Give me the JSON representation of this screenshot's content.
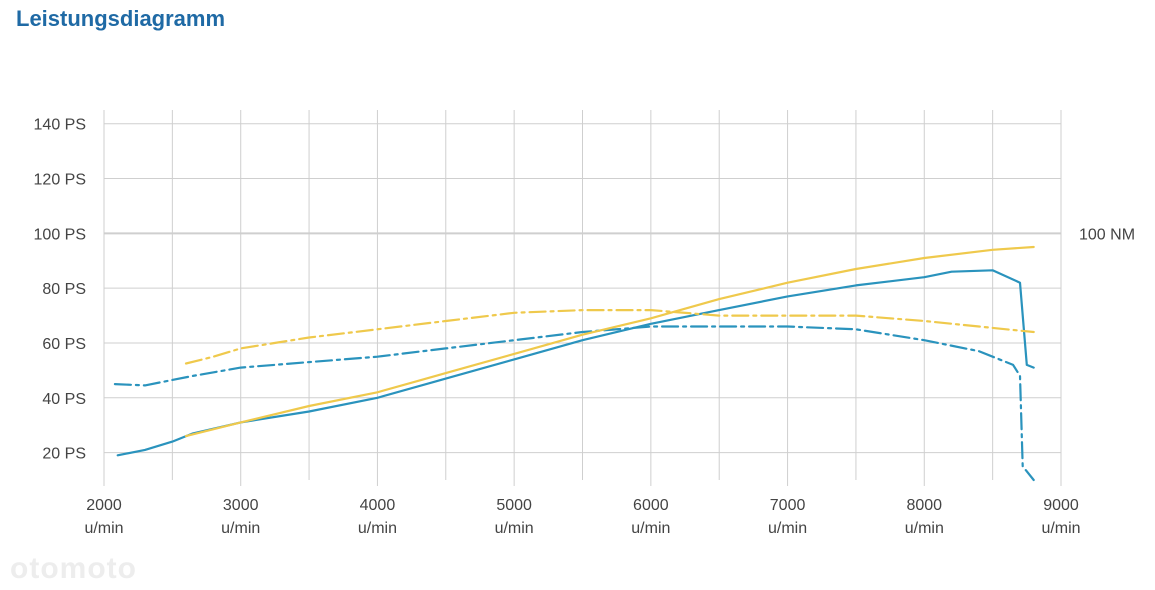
{
  "page": {
    "title": "Leistungsdiagramm",
    "watermark": "otomoto"
  },
  "colors": {
    "title": "#1f6aa5",
    "power": "#2a93bd",
    "torque": "#efc94c",
    "grid": "#cfcfcf",
    "text": "#444444"
  },
  "chart_data": {
    "type": "line",
    "title": "Leistungsdiagramm",
    "xlim": [
      2000,
      9000
    ],
    "ylim": [
      10,
      145
    ],
    "x_ticks": [
      {
        "value": 2000,
        "label": "2000",
        "unit": "u/min"
      },
      {
        "value": 3000,
        "label": "3000",
        "unit": "u/min"
      },
      {
        "value": 4000,
        "label": "4000",
        "unit": "u/min"
      },
      {
        "value": 5000,
        "label": "5000",
        "unit": "u/min"
      },
      {
        "value": 6000,
        "label": "6000",
        "unit": "u/min"
      },
      {
        "value": 7000,
        "label": "7000",
        "unit": "u/min"
      },
      {
        "value": 8000,
        "label": "8000",
        "unit": "u/min"
      },
      {
        "value": 9000,
        "label": "9000",
        "unit": "u/min"
      }
    ],
    "x_minor_gridlines": [
      2500,
      3500,
      4500,
      5500,
      6500,
      7500,
      8500
    ],
    "y_ticks": [
      {
        "value": 20,
        "label": "20 PS"
      },
      {
        "value": 40,
        "label": "40 PS"
      },
      {
        "value": 60,
        "label": "60 PS"
      },
      {
        "value": 80,
        "label": "80 PS"
      },
      {
        "value": 100,
        "label": "100 PS"
      },
      {
        "value": 120,
        "label": "120 PS"
      },
      {
        "value": 140,
        "label": "140 PS"
      }
    ],
    "right_axis_label": {
      "value": 100,
      "label": "100 NM"
    },
    "grid": true,
    "series": [
      {
        "color": "#2a93bd",
        "style": "solid",
        "x": [
          2100,
          2300,
          2500,
          2650,
          3000,
          3500,
          4000,
          4500,
          5000,
          5500,
          6000,
          6500,
          7000,
          7500,
          8000,
          8200,
          8500,
          8700,
          8750,
          8800
        ],
        "y": [
          19,
          21,
          24,
          27,
          31,
          35,
          40,
          47,
          54,
          61,
          67,
          72,
          77,
          81,
          84,
          86,
          86.5,
          82,
          52,
          51
        ]
      },
      {
        "color": "#2a93bd",
        "style": "dashdot",
        "x": [
          2080,
          2300,
          2650,
          3000,
          3500,
          4000,
          4500,
          5000,
          5500,
          6000,
          6500,
          7000,
          7500,
          8000,
          8400,
          8650,
          8700,
          8720,
          8800
        ],
        "y": [
          45,
          44.5,
          48,
          51,
          53,
          55,
          58,
          61,
          64,
          66,
          66,
          66,
          65,
          61,
          57,
          52,
          48,
          15,
          10
        ]
      },
      {
        "color": "#efc94c",
        "style": "solid",
        "x": [
          2600,
          3000,
          3500,
          4000,
          4500,
          5000,
          5500,
          6000,
          6500,
          7000,
          7500,
          8000,
          8500,
          8800
        ],
        "y": [
          26,
          31,
          37,
          42,
          49,
          56,
          63,
          69,
          76,
          82,
          87,
          91,
          94,
          95
        ]
      },
      {
        "color": "#efc94c",
        "style": "dashdot",
        "x": [
          2600,
          2800,
          3000,
          3500,
          4000,
          4500,
          5000,
          5500,
          6000,
          6500,
          7000,
          7500,
          8000,
          8400,
          8600,
          8800
        ],
        "y": [
          52.5,
          55,
          58,
          62,
          65,
          68,
          71,
          72,
          72,
          70,
          70,
          70,
          68,
          66,
          65,
          64
        ]
      }
    ]
  }
}
